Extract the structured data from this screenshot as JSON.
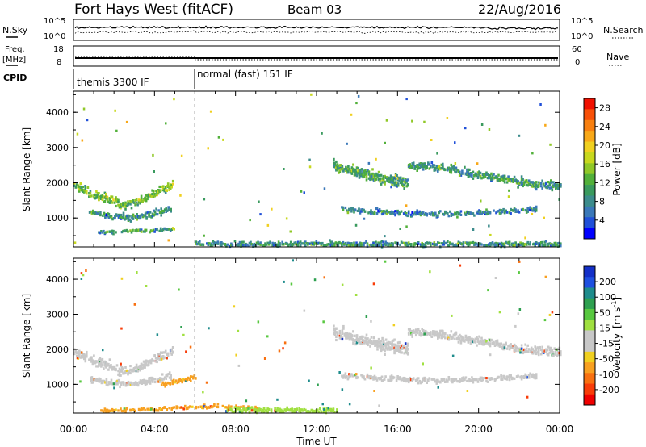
{
  "header": {
    "station": "Fort Hays West (fitACF)",
    "beam": "Beam 03",
    "date": "22/Aug/2016"
  },
  "ancillary": {
    "nsky_label": "N.Sky",
    "nsearch_label": "N.Search",
    "noise_ticks": [
      "10^5",
      "10^0"
    ],
    "freq_label_1": "Freq.",
    "freq_label_2": "[MHz]",
    "freq_ticks": [
      "18",
      "8"
    ],
    "nave_label": "Nave",
    "nave_ticks": [
      "60",
      "0"
    ],
    "cpid_label": "CPID",
    "cpid_segments": [
      {
        "name": "themis 3300 IF",
        "start_hour": 0,
        "end_hour": 6
      },
      {
        "name": "normal (fast) 151 IF",
        "start_hour": 6,
        "end_hour": 24
      }
    ]
  },
  "chart_data": [
    {
      "type": "heatmap",
      "title": "",
      "xlabel": "",
      "ylabel": "Slant Range [km]",
      "x_unit": "hours UT",
      "xlim": [
        0,
        24
      ],
      "ylim": [
        180,
        4600
      ],
      "yticks": [
        1000,
        2000,
        3000,
        4000
      ],
      "colorbar": {
        "label": "Power [dB]",
        "ticks": [
          4,
          8,
          12,
          16,
          20,
          24,
          28
        ],
        "range": [
          0,
          30
        ],
        "colors": [
          "#0000ff",
          "#2050d8",
          "#3a78b8",
          "#3c8c8c",
          "#3a9a5e",
          "#52b03a",
          "#90c828",
          "#c8d81e",
          "#f0d020",
          "#f8a818",
          "#f88010",
          "#f85008",
          "#f01000"
        ]
      },
      "echo_regions": [
        {
          "t0": 0.0,
          "t1": 4.9,
          "range_center": [
            1900,
            1700,
            1550,
            1350,
            1500,
            1750,
            1950
          ],
          "width_km": 260,
          "value": 14
        },
        {
          "t0": 0.8,
          "t1": 4.8,
          "range_center": [
            1150,
            1050,
            1000,
            1100,
            1250
          ],
          "width_km": 200,
          "value": 9
        },
        {
          "t0": 1.2,
          "t1": 5.0,
          "range_center": [
            600,
            620,
            650,
            700
          ],
          "width_km": 120,
          "value": 10
        },
        {
          "t0": 6.0,
          "t1": 24.0,
          "range_center": [
            260,
            260,
            260,
            260
          ],
          "width_km": 160,
          "value": 9
        },
        {
          "t0": 12.8,
          "t1": 16.5,
          "range_center": [
            2500,
            2300,
            2100,
            2000
          ],
          "width_km": 350,
          "value": 11
        },
        {
          "t0": 13.2,
          "t1": 22.8,
          "range_center": [
            1250,
            1150,
            1100,
            1150,
            1250
          ],
          "width_km": 170,
          "value": 8
        },
        {
          "t0": 16.5,
          "t1": 24.0,
          "range_center": [
            2500,
            2400,
            2200,
            2000,
            1900
          ],
          "width_km": 260,
          "value": 10
        }
      ]
    },
    {
      "type": "heatmap",
      "title": "",
      "xlabel": "Time UT",
      "ylabel": "Slant Range [km]",
      "x_unit": "hours UT",
      "xlim": [
        0,
        24
      ],
      "xticks": [
        "00:00",
        "04:00",
        "08:00",
        "12:00",
        "16:00",
        "20:00",
        "00:00"
      ],
      "ylim": [
        180,
        4600
      ],
      "yticks": [
        1000,
        2000,
        3000,
        4000
      ],
      "colorbar": {
        "label_main": "Velocity",
        "label_unit": "[m s",
        "label_exp": "-1",
        "label_close": "]",
        "ticks": [
          "200",
          "100",
          "50",
          "15",
          "-15",
          "-50",
          "-100",
          "-200"
        ],
        "colors": [
          "#1430c8",
          "#1e50e0",
          "#1e8c8c",
          "#2ea050",
          "#58c840",
          "#a0e040",
          "#c8c8c8",
          "#c8c8c8",
          "#f0d020",
          "#f8a020",
          "#f87010",
          "#f83c08",
          "#f00000"
        ]
      },
      "echo_regions": [
        {
          "t0": 0.0,
          "t1": 4.9,
          "range_center": [
            1900,
            1700,
            1550,
            1350,
            1500,
            1750,
            1950
          ],
          "width_km": 260,
          "value": 0
        },
        {
          "t0": 0.8,
          "t1": 4.8,
          "range_center": [
            1150,
            1050,
            1000,
            1100,
            1250
          ],
          "width_km": 200,
          "value": 0
        },
        {
          "t0": 4.3,
          "t1": 6.0,
          "range_center": [
            1000,
            1100,
            1200
          ],
          "width_km": 150,
          "value": -60
        },
        {
          "t0": 1.2,
          "t1": 9.0,
          "range_center": [
            250,
            260,
            330,
            380,
            300
          ],
          "width_km": 120,
          "value": -60
        },
        {
          "t0": 7.5,
          "t1": 13.0,
          "range_center": [
            260,
            260,
            260
          ],
          "width_km": 160,
          "value": 35
        },
        {
          "t0": 12.8,
          "t1": 16.5,
          "range_center": [
            2500,
            2300,
            2100,
            2000
          ],
          "width_km": 350,
          "value": 0
        },
        {
          "t0": 13.2,
          "t1": 22.8,
          "range_center": [
            1250,
            1150,
            1100,
            1150,
            1250
          ],
          "width_km": 170,
          "value": 0
        },
        {
          "t0": 16.5,
          "t1": 24.0,
          "range_center": [
            2500,
            2400,
            2200,
            2000,
            1900
          ],
          "width_km": 260,
          "value": 0
        }
      ]
    }
  ]
}
